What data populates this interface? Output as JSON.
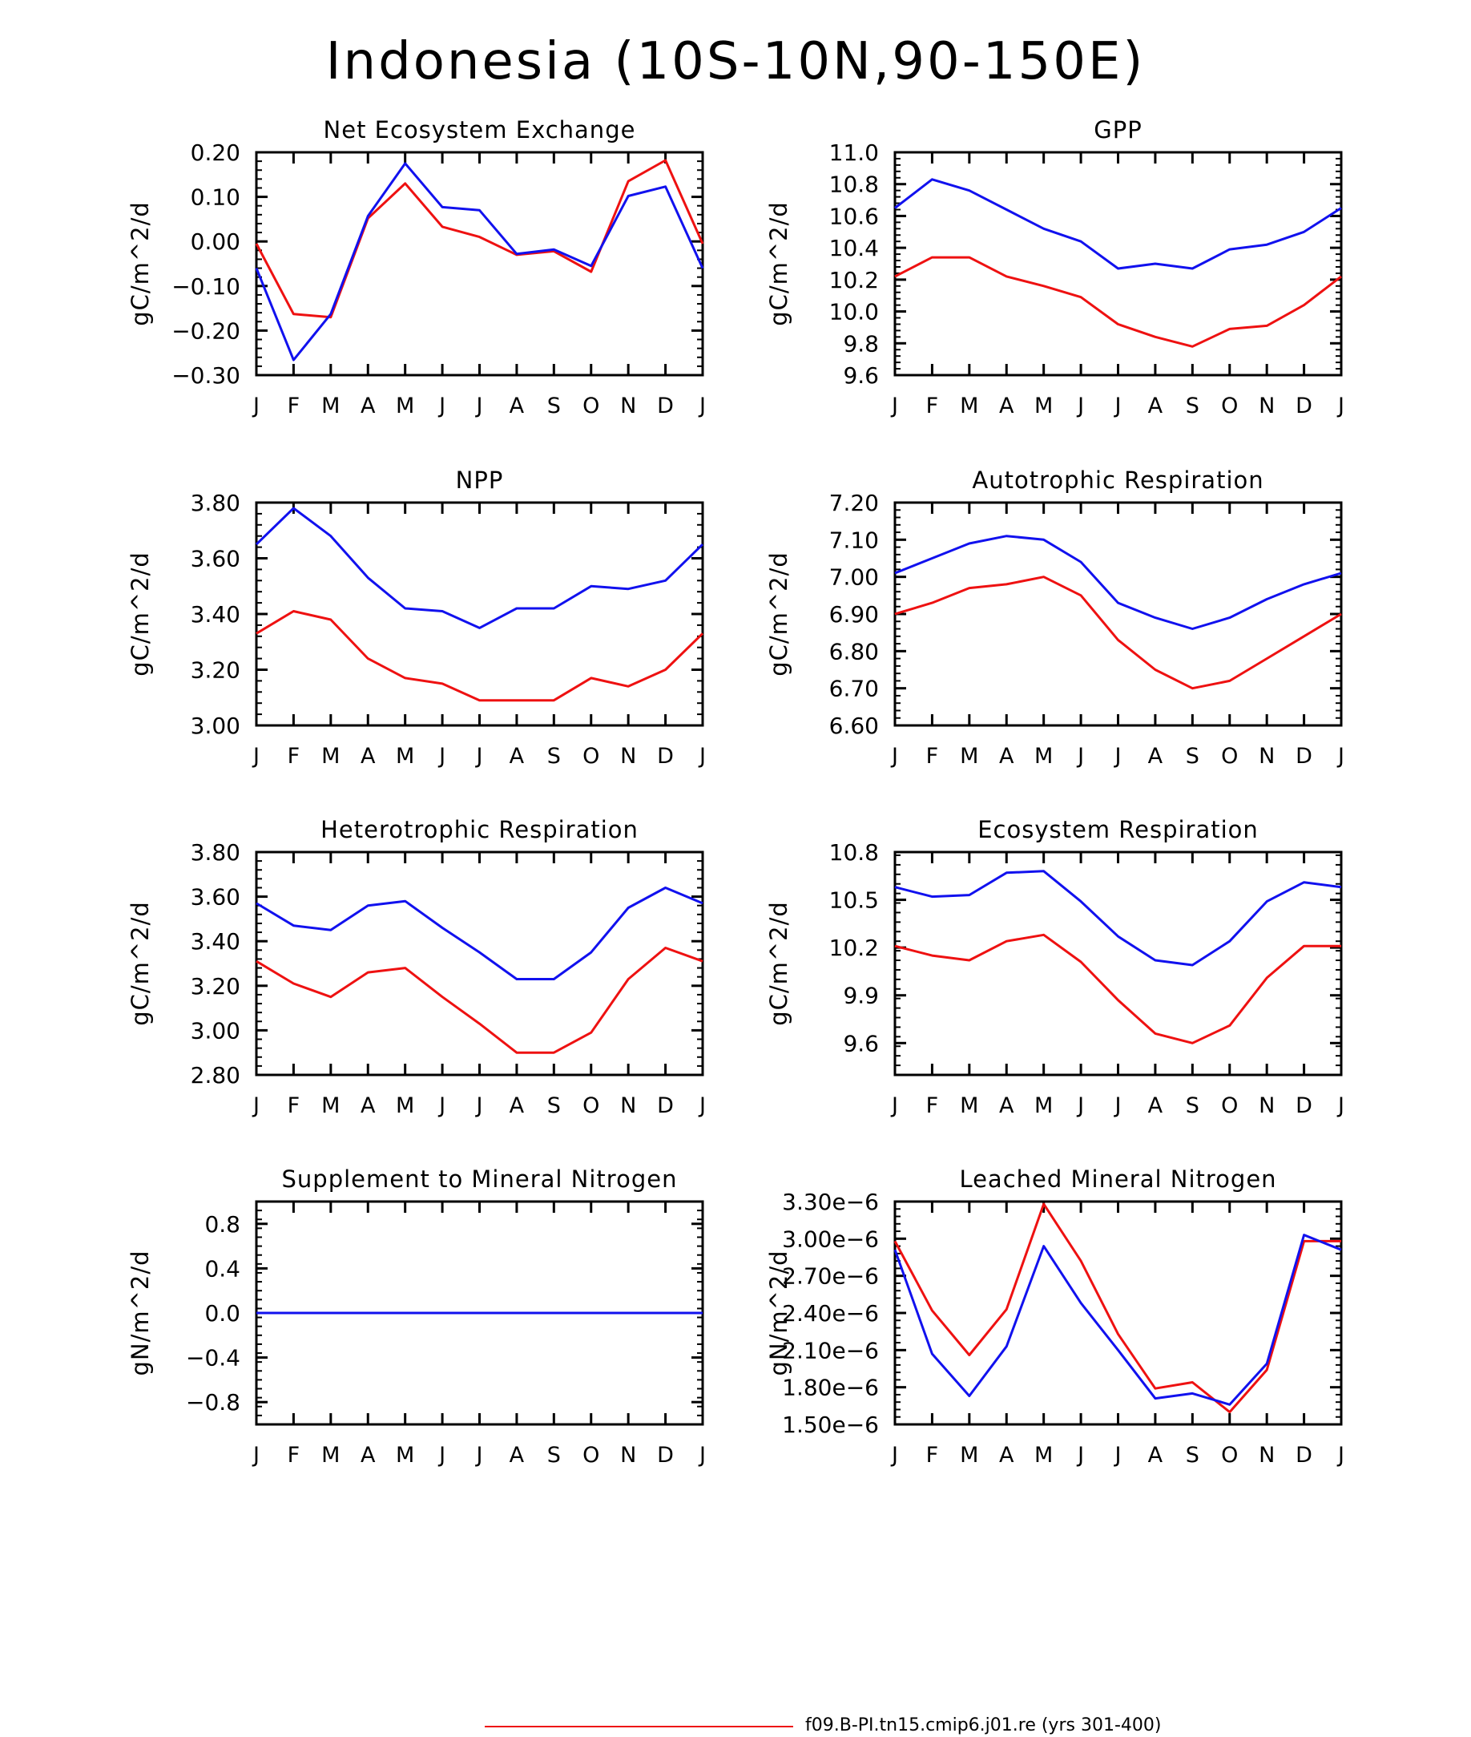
{
  "page": {
    "title": "Indonesia (10S-10N,90-150E)"
  },
  "legend": {
    "entries": [
      {
        "label": "f09.B-PI.tn15.cmip6.j01.re (yrs 301-400)",
        "color": "#ee1111"
      }
    ]
  },
  "series_colors": {
    "red": "#ee1111",
    "blue": "#1111ee"
  },
  "month_labels": [
    "J",
    "F",
    "M",
    "A",
    "M",
    "J",
    "J",
    "A",
    "S",
    "O",
    "N",
    "D",
    "J"
  ],
  "chart_data": [
    {
      "type": "line",
      "title": "Net Ecosystem Exchange",
      "ylabel": "gC/m^2/d",
      "ylim": [
        -0.3,
        0.2
      ],
      "yticks": [
        -0.3,
        -0.2,
        -0.1,
        0.0,
        0.1,
        0.2
      ],
      "ytick_labels": [
        "−0.30",
        "−0.20",
        "−0.10",
        "0.00",
        "0.10",
        "0.20"
      ],
      "series": [
        {
          "color": "#ee1111",
          "values": [
            -0.005,
            -0.163,
            -0.17,
            0.052,
            0.13,
            0.033,
            0.01,
            -0.03,
            -0.022,
            -0.068,
            0.135,
            0.182,
            -0.005
          ]
        },
        {
          "color": "#1111ee",
          "values": [
            -0.06,
            -0.266,
            -0.163,
            0.057,
            0.175,
            0.077,
            0.07,
            -0.028,
            -0.018,
            -0.055,
            0.102,
            0.123,
            -0.06
          ]
        }
      ]
    },
    {
      "type": "line",
      "title": "GPP",
      "ylabel": "gC/m^2/d",
      "ylim": [
        9.6,
        11.0
      ],
      "yticks": [
        9.6,
        9.8,
        10.0,
        10.2,
        10.4,
        10.6,
        10.8,
        11.0
      ],
      "ytick_labels": [
        "9.6",
        "9.8",
        "10.0",
        "10.2",
        "10.4",
        "10.6",
        "10.8",
        "11.0"
      ],
      "series": [
        {
          "color": "#ee1111",
          "values": [
            10.22,
            10.34,
            10.34,
            10.22,
            10.16,
            10.09,
            9.92,
            9.84,
            9.78,
            9.89,
            9.91,
            10.04,
            10.22
          ]
        },
        {
          "color": "#1111ee",
          "values": [
            10.65,
            10.83,
            10.76,
            10.64,
            10.52,
            10.44,
            10.27,
            10.3,
            10.27,
            10.39,
            10.42,
            10.5,
            10.65
          ]
        }
      ]
    },
    {
      "type": "line",
      "title": "NPP",
      "ylabel": "gC/m^2/d",
      "ylim": [
        3.0,
        3.8
      ],
      "yticks": [
        3.0,
        3.2,
        3.4,
        3.6,
        3.8
      ],
      "ytick_labels": [
        "3.00",
        "3.20",
        "3.40",
        "3.60",
        "3.80"
      ],
      "series": [
        {
          "color": "#ee1111",
          "values": [
            3.33,
            3.41,
            3.38,
            3.24,
            3.17,
            3.15,
            3.09,
            3.09,
            3.09,
            3.17,
            3.14,
            3.2,
            3.33
          ]
        },
        {
          "color": "#1111ee",
          "values": [
            3.65,
            3.78,
            3.68,
            3.53,
            3.42,
            3.41,
            3.35,
            3.42,
            3.42,
            3.5,
            3.49,
            3.52,
            3.65
          ]
        }
      ]
    },
    {
      "type": "line",
      "title": "Autotrophic Respiration",
      "ylabel": "gC/m^2/d",
      "ylim": [
        6.6,
        7.2
      ],
      "yticks": [
        6.6,
        6.7,
        6.8,
        6.9,
        7.0,
        7.1,
        7.2
      ],
      "ytick_labels": [
        "6.60",
        "6.70",
        "6.80",
        "6.90",
        "7.00",
        "7.10",
        "7.20"
      ],
      "series": [
        {
          "color": "#ee1111",
          "values": [
            6.9,
            6.93,
            6.97,
            6.98,
            7.0,
            6.95,
            6.83,
            6.75,
            6.7,
            6.72,
            6.78,
            6.84,
            6.9
          ]
        },
        {
          "color": "#1111ee",
          "values": [
            7.01,
            7.05,
            7.09,
            7.11,
            7.1,
            7.04,
            6.93,
            6.89,
            6.86,
            6.89,
            6.94,
            6.98,
            7.01
          ]
        }
      ]
    },
    {
      "type": "line",
      "title": "Heterotrophic Respiration",
      "ylabel": "gC/m^2/d",
      "ylim": [
        2.8,
        3.8
      ],
      "yticks": [
        2.8,
        3.0,
        3.2,
        3.4,
        3.6,
        3.8
      ],
      "ytick_labels": [
        "2.80",
        "3.00",
        "3.20",
        "3.40",
        "3.60",
        "3.80"
      ],
      "series": [
        {
          "color": "#ee1111",
          "values": [
            3.31,
            3.21,
            3.15,
            3.26,
            3.28,
            3.15,
            3.03,
            2.9,
            2.9,
            2.99,
            3.23,
            3.37,
            3.31
          ]
        },
        {
          "color": "#1111ee",
          "values": [
            3.57,
            3.47,
            3.45,
            3.56,
            3.58,
            3.46,
            3.35,
            3.23,
            3.23,
            3.35,
            3.55,
            3.64,
            3.57
          ]
        }
      ]
    },
    {
      "type": "line",
      "title": "Ecosystem Respiration",
      "ylabel": "gC/m^2/d",
      "ylim": [
        9.4,
        10.8
      ],
      "yticks": [
        9.6,
        9.9,
        10.2,
        10.5,
        10.8
      ],
      "ytick_labels": [
        "9.6",
        "9.9",
        "10.2",
        "10.5",
        "10.8"
      ],
      "series": [
        {
          "color": "#ee1111",
          "values": [
            10.21,
            10.15,
            10.12,
            10.24,
            10.28,
            10.11,
            9.87,
            9.66,
            9.6,
            9.71,
            10.01,
            10.21,
            10.21
          ]
        },
        {
          "color": "#1111ee",
          "values": [
            10.58,
            10.52,
            10.53,
            10.67,
            10.68,
            10.49,
            10.27,
            10.12,
            10.09,
            10.24,
            10.49,
            10.61,
            10.58
          ]
        }
      ]
    },
    {
      "type": "line",
      "title": "Supplement to Mineral Nitrogen",
      "ylabel": "gN/m^2/d",
      "ylim": [
        -1.0,
        1.0
      ],
      "yticks": [
        -0.8,
        -0.4,
        0.0,
        0.4,
        0.8
      ],
      "ytick_labels": [
        "−0.8",
        "−0.4",
        "0.0",
        "0.4",
        "0.8"
      ],
      "series": [
        {
          "color": "#ee1111",
          "values": [
            0,
            0,
            0,
            0,
            0,
            0,
            0,
            0,
            0,
            0,
            0,
            0,
            0
          ]
        },
        {
          "color": "#1111ee",
          "values": [
            0,
            0,
            0,
            0,
            0,
            0,
            0,
            0,
            0,
            0,
            0,
            0,
            0
          ]
        }
      ]
    },
    {
      "type": "line",
      "title": "Leached Mineral Nitrogen",
      "ylabel": "gN/m^2/d",
      "ylim": [
        1.5e-06,
        3.3e-06
      ],
      "yticks": [
        1.5e-06,
        1.8e-06,
        2.1e-06,
        2.4e-06,
        2.7e-06,
        3e-06,
        3.3e-06
      ],
      "ytick_labels": [
        "1.50e−6",
        "1.80e−6",
        "2.10e−6",
        "2.40e−6",
        "2.70e−6",
        "3.00e−6",
        "3.30e−6"
      ],
      "series": [
        {
          "color": "#ee1111",
          "values": [
            2.98e-06,
            2.42e-06,
            2.06e-06,
            2.43e-06,
            3.28e-06,
            2.82e-06,
            2.23e-06,
            1.79e-06,
            1.84e-06,
            1.6e-06,
            1.94e-06,
            2.98e-06,
            2.98e-06
          ]
        },
        {
          "color": "#1111ee",
          "values": [
            2.91e-06,
            2.07e-06,
            1.73e-06,
            2.13e-06,
            2.94e-06,
            2.48e-06,
            2.1e-06,
            1.71e-06,
            1.75e-06,
            1.66e-06,
            1.99e-06,
            3.03e-06,
            2.91e-06
          ]
        }
      ]
    }
  ]
}
